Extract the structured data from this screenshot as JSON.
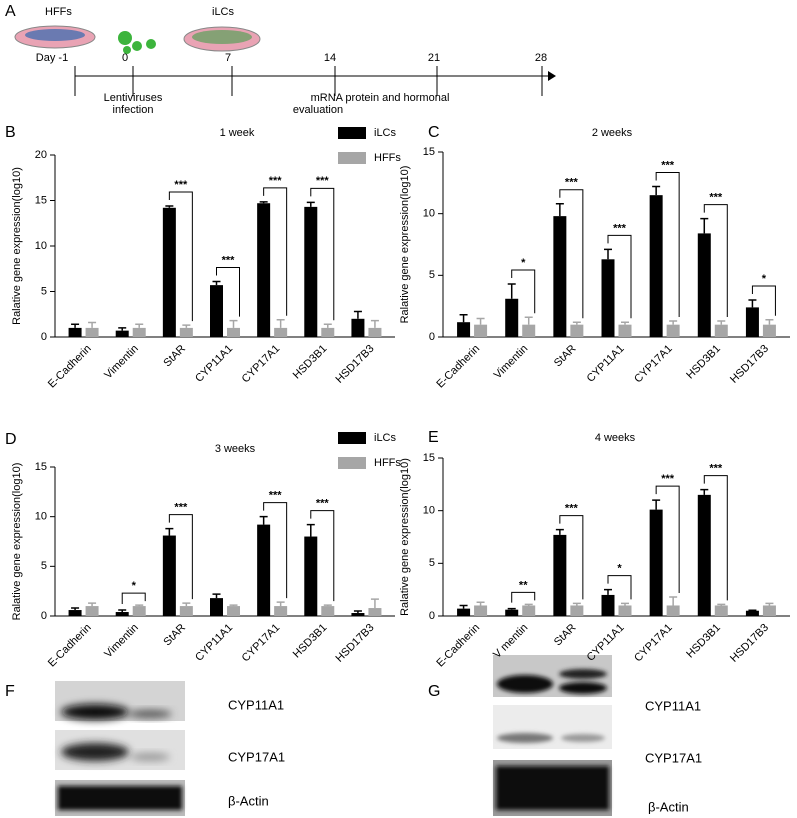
{
  "timeline": {
    "panel": "A",
    "cells": [
      "HFFs",
      "iLCs"
    ],
    "days": [
      "Day -1",
      "0",
      "7",
      "14",
      "21",
      "28"
    ],
    "events": [
      [
        "Lentiviruses",
        "infection"
      ],
      [
        "mRNA protein and hormonal",
        "evaluation"
      ]
    ]
  },
  "chart_data": [
    {
      "type": "bar",
      "panel": "B",
      "title": "1 week",
      "y_label": "Ralative gene expression(log10)",
      "categories": [
        "E-Cadherin",
        "Vimentin",
        "StAR",
        "CYP11A1",
        "CYP17A1",
        "HSD3B1",
        "HSD17B3"
      ],
      "series": [
        {
          "name": "iLCs",
          "color": "#000000",
          "values": [
            1.0,
            0.7,
            14.2,
            5.7,
            14.7,
            14.3,
            2.0
          ],
          "errors": [
            0.4,
            0.3,
            0.2,
            0.4,
            0.15,
            0.5,
            0.8
          ]
        },
        {
          "name": "HFFs",
          "color": "#a6a6a6",
          "values": [
            1.0,
            1.0,
            1.0,
            1.0,
            1.0,
            1.0,
            1.0
          ],
          "errors": [
            0.6,
            0.4,
            0.3,
            0.8,
            0.9,
            0.4,
            0.8
          ]
        }
      ],
      "significance": [
        null,
        null,
        "***",
        "***",
        "***",
        "***",
        null
      ],
      "ylim": [
        0,
        20
      ],
      "yticks": [
        0,
        5,
        10,
        15,
        20
      ]
    },
    {
      "type": "bar",
      "panel": "C",
      "title": "2 weeks",
      "y_label": "Ralative gene expression(log10)",
      "categories": [
        "E-Cadherin",
        "Vimentin",
        "StAR",
        "CYP11A1",
        "CYP17A1",
        "HSD3B1",
        "HSD17B3"
      ],
      "series": [
        {
          "color": "#000000",
          "values": [
            1.2,
            3.1,
            9.8,
            6.3,
            11.5,
            8.4,
            2.4
          ],
          "errors": [
            0.6,
            1.2,
            1.0,
            0.8,
            0.7,
            1.2,
            0.6
          ]
        },
        {
          "color": "#a6a6a6",
          "values": [
            1.0,
            1.0,
            1.0,
            1.0,
            1.0,
            1.0,
            1.0
          ],
          "errors": [
            0.5,
            0.6,
            0.2,
            0.2,
            0.3,
            0.3,
            0.4
          ]
        }
      ],
      "significance": [
        null,
        "*",
        "***",
        "***",
        "***",
        "***",
        "*"
      ],
      "ylim": [
        0,
        15
      ],
      "yticks": [
        0,
        5,
        10,
        15
      ]
    },
    {
      "type": "bar",
      "panel": "D",
      "title": "3 weeks",
      "y_label": "Ralative gene expression(log10)",
      "categories": [
        "E-Cadherin",
        "Vimentin",
        "StAR",
        "CYP11A1",
        "CYP17A1",
        "HSD3B1",
        "HSD17B3"
      ],
      "series": [
        {
          "name": "iLCs",
          "color": "#000000",
          "values": [
            0.6,
            0.4,
            8.1,
            1.8,
            9.2,
            8.0,
            0.3
          ],
          "errors": [
            0.2,
            0.2,
            0.7,
            0.4,
            0.8,
            1.2,
            0.2
          ]
        },
        {
          "name": "HFFs",
          "color": "#a6a6a6",
          "values": [
            1.0,
            1.0,
            1.0,
            1.0,
            1.0,
            1.0,
            0.8
          ],
          "errors": [
            0.3,
            0.1,
            0.3,
            0.1,
            0.4,
            0.1,
            0.9
          ]
        }
      ],
      "significance": [
        null,
        "*",
        "***",
        null,
        "***",
        "***",
        null
      ],
      "ylim": [
        0,
        15
      ],
      "yticks": [
        0,
        5,
        10,
        15
      ]
    },
    {
      "type": "bar",
      "panel": "E",
      "title": "4 weeks",
      "y_label": "Ralative gene expression(log10)",
      "categories": [
        "E-Cadherin",
        "V mentin",
        "StAR",
        "CYP11A1",
        "CYP17A1",
        "HSD3B1",
        "HSD17B3"
      ],
      "series": [
        {
          "color": "#000000",
          "values": [
            0.7,
            0.6,
            7.7,
            2.0,
            10.1,
            11.5,
            0.5
          ],
          "errors": [
            0.3,
            0.1,
            0.5,
            0.5,
            0.9,
            0.5,
            0.05
          ]
        },
        {
          "color": "#a6a6a6",
          "values": [
            1.0,
            1.0,
            1.0,
            1.0,
            1.0,
            1.0,
            1.0
          ],
          "errors": [
            0.3,
            0.1,
            0.2,
            0.2,
            0.8,
            0.1,
            0.2
          ]
        }
      ],
      "significance": [
        null,
        "**",
        "***",
        "*",
        "***",
        "***",
        null
      ],
      "ylim": [
        0,
        15
      ],
      "yticks": [
        0,
        5,
        10,
        15
      ]
    }
  ],
  "blots": [
    {
      "panel": "F",
      "labels": [
        "CYP11A1",
        "CYP17A1",
        "β-Actin"
      ]
    },
    {
      "panel": "G",
      "labels": [
        "CYP11A1",
        "CYP17A1",
        "β-Actin"
      ]
    }
  ]
}
